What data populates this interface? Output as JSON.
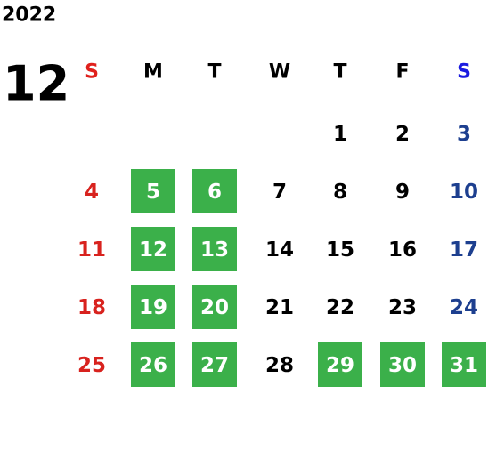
{
  "year": "2022",
  "month": "12",
  "weekdays": [
    "S",
    "M",
    "T",
    "W",
    "T",
    "F",
    "S"
  ],
  "weeks": [
    [
      {
        "day": 1,
        "weekday": 4,
        "highlighted": false
      },
      {
        "day": 2,
        "weekday": 5,
        "highlighted": false
      },
      {
        "day": 3,
        "weekday": 6,
        "highlighted": false
      }
    ],
    [
      {
        "day": 4,
        "weekday": 0,
        "highlighted": false
      },
      {
        "day": 5,
        "weekday": 1,
        "highlighted": true
      },
      {
        "day": 6,
        "weekday": 2,
        "highlighted": true
      },
      {
        "day": 7,
        "weekday": 3,
        "highlighted": false
      },
      {
        "day": 8,
        "weekday": 4,
        "highlighted": false
      },
      {
        "day": 9,
        "weekday": 5,
        "highlighted": false
      },
      {
        "day": 10,
        "weekday": 6,
        "highlighted": false
      }
    ],
    [
      {
        "day": 11,
        "weekday": 0,
        "highlighted": false
      },
      {
        "day": 12,
        "weekday": 1,
        "highlighted": true
      },
      {
        "day": 13,
        "weekday": 2,
        "highlighted": true
      },
      {
        "day": 14,
        "weekday": 3,
        "highlighted": false
      },
      {
        "day": 15,
        "weekday": 4,
        "highlighted": false
      },
      {
        "day": 16,
        "weekday": 5,
        "highlighted": false
      },
      {
        "day": 17,
        "weekday": 6,
        "highlighted": false
      }
    ],
    [
      {
        "day": 18,
        "weekday": 0,
        "highlighted": false
      },
      {
        "day": 19,
        "weekday": 1,
        "highlighted": true
      },
      {
        "day": 20,
        "weekday": 2,
        "highlighted": true
      },
      {
        "day": 21,
        "weekday": 3,
        "highlighted": false
      },
      {
        "day": 22,
        "weekday": 4,
        "highlighted": false
      },
      {
        "day": 23,
        "weekday": 5,
        "highlighted": false
      },
      {
        "day": 24,
        "weekday": 6,
        "highlighted": false
      }
    ],
    [
      {
        "day": 25,
        "weekday": 0,
        "highlighted": false
      },
      {
        "day": 26,
        "weekday": 1,
        "highlighted": true
      },
      {
        "day": 27,
        "weekday": 2,
        "highlighted": true
      },
      {
        "day": 28,
        "weekday": 3,
        "highlighted": false
      },
      {
        "day": 29,
        "weekday": 4,
        "highlighted": true
      },
      {
        "day": 30,
        "weekday": 5,
        "highlighted": true
      },
      {
        "day": 31,
        "weekday": 6,
        "highlighted": true
      }
    ]
  ]
}
